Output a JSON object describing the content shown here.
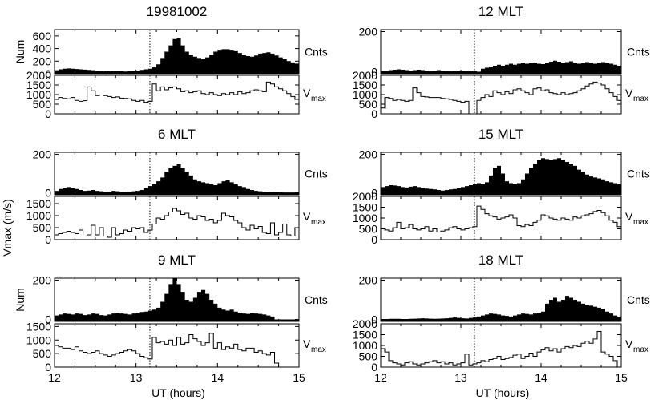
{
  "figure": {
    "x_ticks": [
      "12",
      "13",
      "14",
      "15"
    ],
    "x_label": "UT (hours)",
    "shared_y_label": "Vmax (m/s)",
    "right_label_counts": "Cnts",
    "right_label_v_base": "V",
    "right_label_v_sub": "max",
    "onset_ut": 13.17
  },
  "chart_data": [
    {
      "type": "area",
      "title": "19981002",
      "panels": [
        {
          "role": "counts",
          "ylabel": "Num",
          "yticks": [
            "0",
            "200",
            "400",
            "600"
          ],
          "ylim": [
            0,
            700
          ],
          "x_start": 12.0,
          "x_step": 0.05,
          "values": [
            55,
            70,
            80,
            85,
            80,
            75,
            70,
            65,
            60,
            55,
            50,
            45,
            40,
            45,
            50,
            45,
            40,
            35,
            40,
            45,
            50,
            60,
            70,
            80,
            100,
            150,
            250,
            350,
            450,
            550,
            570,
            450,
            350,
            300,
            270,
            250,
            230,
            260,
            300,
            350,
            380,
            390,
            390,
            380,
            370,
            330,
            300,
            280,
            270,
            290,
            320,
            330,
            340,
            320,
            290,
            260,
            230,
            200,
            180,
            160
          ]
        },
        {
          "role": "vmax",
          "ylabel": "",
          "yticks": [
            "0",
            "500",
            "1000",
            "1500",
            "2000"
          ],
          "ylim": [
            0,
            2000
          ],
          "x_start": 12.0,
          "x_step": 0.05,
          "values": [
            750,
            850,
            800,
            780,
            850,
            700,
            650,
            680,
            1400,
            1200,
            950,
            980,
            950,
            900,
            850,
            880,
            820,
            800,
            780,
            700,
            650,
            700,
            600,
            650,
            1550,
            1200,
            1400,
            1250,
            1350,
            1400,
            1300,
            1150,
            1200,
            1100,
            1150,
            1200,
            1050,
            1000,
            1100,
            1000,
            950,
            1050,
            1000,
            1100,
            1000,
            1150,
            1050,
            1100,
            1200,
            1250,
            1200,
            1150,
            1650,
            1550,
            1400,
            1300,
            1200,
            1050,
            900,
            750
          ]
        }
      ]
    },
    {
      "type": "area",
      "title": "12 MLT",
      "panels": [
        {
          "role": "counts",
          "ylabel": "",
          "yticks": [
            "0",
            "200"
          ],
          "ylim": [
            -10,
            210
          ],
          "x_start": 12.0,
          "x_step": 0.05,
          "values": [
            0,
            5,
            8,
            10,
            12,
            10,
            8,
            6,
            8,
            10,
            8,
            6,
            5,
            6,
            8,
            6,
            5,
            4,
            5,
            6,
            5,
            4,
            5,
            3,
            0,
            15,
            20,
            25,
            30,
            35,
            30,
            35,
            40,
            35,
            40,
            45,
            40,
            42,
            45,
            40,
            38,
            44,
            50,
            55,
            50,
            45,
            48,
            52,
            45,
            40,
            42,
            48,
            45,
            40,
            44,
            48,
            45,
            40,
            35,
            30
          ]
        },
        {
          "role": "vmax",
          "ylabel": "",
          "yticks": [
            "0",
            "500",
            "1000",
            "1500",
            "2000"
          ],
          "ylim": [
            0,
            2000
          ],
          "x_start": 12.0,
          "x_step": 0.05,
          "values": [
            300,
            850,
            800,
            700,
            750,
            700,
            650,
            700,
            1350,
            1100,
            900,
            880,
            850,
            850,
            850,
            800,
            780,
            750,
            700,
            650,
            600,
            650,
            -400,
            -400,
            700,
            850,
            1000,
            900,
            1200,
            1100,
            1000,
            1150,
            1050,
            1250,
            1300,
            1200,
            1100,
            1000,
            1300,
            1350,
            1200,
            1250,
            1100,
            1050,
            1000,
            1100,
            1000,
            1050,
            1100,
            1200,
            1300,
            1450,
            1550,
            1650,
            1600,
            1500,
            1300,
            1100,
            900,
            700
          ]
        }
      ]
    },
    {
      "type": "area",
      "title": "6 MLT",
      "panels": [
        {
          "role": "counts",
          "ylabel": "",
          "yticks": [
            "0",
            "200"
          ],
          "ylim": [
            -10,
            210
          ],
          "x_start": 12.0,
          "x_step": 0.05,
          "values": [
            10,
            20,
            25,
            30,
            25,
            20,
            15,
            10,
            12,
            15,
            10,
            8,
            5,
            6,
            10,
            8,
            5,
            3,
            5,
            8,
            10,
            15,
            25,
            35,
            45,
            60,
            80,
            110,
            130,
            140,
            150,
            130,
            110,
            90,
            70,
            60,
            55,
            50,
            45,
            40,
            50,
            60,
            65,
            55,
            45,
            35,
            30,
            20,
            15,
            10,
            8,
            6,
            5,
            4,
            3,
            3,
            2,
            2,
            2,
            2
          ]
        },
        {
          "role": "vmax",
          "ylabel": "",
          "yticks": [
            "0",
            "500",
            "1000",
            "1500"
          ],
          "ylim": [
            0,
            1800
          ],
          "x_start": 12.0,
          "x_step": 0.05,
          "values": [
            200,
            250,
            300,
            350,
            300,
            250,
            400,
            150,
            200,
            600,
            200,
            500,
            150,
            100,
            500,
            200,
            250,
            400,
            350,
            500,
            450,
            500,
            300,
            400,
            650,
            900,
            850,
            1000,
            1150,
            1300,
            1200,
            1050,
            1100,
            900,
            850,
            1000,
            950,
            800,
            850,
            700,
            800,
            1100,
            1000,
            950,
            800,
            700,
            500,
            400,
            600,
            450,
            550,
            300,
            250,
            700,
            200,
            300,
            650,
            200,
            150,
            500
          ]
        }
      ]
    },
    {
      "type": "area",
      "title": "15 MLT",
      "panels": [
        {
          "role": "counts",
          "ylabel": "",
          "yticks": [
            "0",
            "200"
          ],
          "ylim": [
            -10,
            210
          ],
          "x_start": 12.0,
          "x_step": 0.05,
          "values": [
            30,
            35,
            40,
            38,
            35,
            30,
            28,
            32,
            35,
            30,
            25,
            22,
            20,
            18,
            15,
            12,
            15,
            18,
            20,
            25,
            30,
            35,
            40,
            45,
            50,
            45,
            55,
            90,
            130,
            140,
            100,
            60,
            50,
            45,
            50,
            70,
            100,
            130,
            150,
            170,
            180,
            175,
            170,
            175,
            180,
            170,
            160,
            150,
            140,
            120,
            110,
            95,
            85,
            80,
            75,
            70,
            60,
            55,
            50,
            45
          ]
        },
        {
          "role": "vmax",
          "ylabel": "",
          "yticks": [
            "0",
            "500",
            "1000",
            "1500",
            "2000"
          ],
          "ylim": [
            0,
            2000
          ],
          "x_start": 12.0,
          "x_step": 0.05,
          "values": [
            500,
            450,
            400,
            550,
            800,
            500,
            550,
            700,
            500,
            450,
            500,
            600,
            400,
            500,
            350,
            400,
            450,
            550,
            600,
            500,
            450,
            500,
            550,
            600,
            1550,
            1400,
            1200,
            1100,
            1050,
            950,
            1000,
            1050,
            1150,
            1000,
            650,
            600,
            700,
            650,
            800,
            900,
            1150,
            1100,
            1000,
            950,
            900,
            1000,
            950,
            900,
            1050,
            1000,
            1100,
            1150,
            1200,
            1300,
            1350,
            1250,
            1100,
            900,
            800,
            600
          ]
        }
      ]
    },
    {
      "type": "area",
      "title": "9 MLT",
      "panels": [
        {
          "role": "counts",
          "ylabel": "Num",
          "yticks": [
            "0",
            "200"
          ],
          "ylim": [
            -10,
            210
          ],
          "x_start": 12.0,
          "x_step": 0.05,
          "values": [
            20,
            25,
            30,
            28,
            25,
            30,
            28,
            22,
            25,
            30,
            28,
            22,
            20,
            25,
            30,
            35,
            30,
            28,
            25,
            30,
            35,
            38,
            40,
            45,
            50,
            60,
            90,
            130,
            180,
            210,
            180,
            140,
            100,
            90,
            110,
            140,
            150,
            130,
            100,
            80,
            60,
            50,
            45,
            50,
            40,
            35,
            30,
            28,
            32,
            30,
            28,
            25,
            20,
            15,
            0,
            0,
            0,
            0,
            0,
            0
          ]
        },
        {
          "role": "vmax",
          "ylabel": "",
          "yticks": [
            "0",
            "500",
            "1000",
            "1500"
          ],
          "ylim": [
            0,
            1600
          ],
          "x_start": 12.0,
          "x_step": 0.05,
          "values": [
            800,
            750,
            700,
            700,
            650,
            750,
            600,
            550,
            500,
            550,
            600,
            500,
            450,
            400,
            450,
            500,
            550,
            600,
            650,
            600,
            500,
            400,
            350,
            300,
            1100,
            900,
            950,
            850,
            1000,
            800,
            1100,
            850,
            900,
            1200,
            1050,
            950,
            800,
            900,
            1250,
            700,
            900,
            650,
            750,
            700,
            850,
            650,
            600,
            700,
            700,
            550,
            600,
            500,
            450,
            550,
            150,
            0,
            0,
            0,
            0,
            0
          ]
        }
      ]
    },
    {
      "type": "area",
      "title": "18 MLT",
      "panels": [
        {
          "role": "counts",
          "ylabel": "",
          "yticks": [
            "0",
            "200"
          ],
          "ylim": [
            -10,
            210
          ],
          "x_start": 12.0,
          "x_step": 0.05,
          "values": [
            2,
            2,
            3,
            3,
            3,
            2,
            2,
            3,
            4,
            5,
            6,
            5,
            4,
            3,
            4,
            5,
            6,
            8,
            10,
            8,
            6,
            5,
            8,
            10,
            15,
            20,
            25,
            30,
            28,
            25,
            20,
            18,
            15,
            20,
            25,
            30,
            28,
            25,
            30,
            35,
            40,
            80,
            100,
            110,
            90,
            100,
            120,
            110,
            100,
            90,
            80,
            75,
            70,
            65,
            60,
            55,
            40,
            30,
            20,
            15
          ]
        },
        {
          "role": "vmax",
          "ylabel": "",
          "yticks": [
            "0",
            "500",
            "1000",
            "1500",
            "2000"
          ],
          "ylim": [
            0,
            2000
          ],
          "x_start": 12.0,
          "x_step": 0.05,
          "values": [
            850,
            700,
            300,
            200,
            150,
            100,
            200,
            250,
            150,
            100,
            150,
            200,
            250,
            300,
            200,
            250,
            150,
            200,
            100,
            150,
            200,
            600,
            100,
            150,
            200,
            300,
            250,
            350,
            400,
            500,
            350,
            400,
            450,
            550,
            600,
            400,
            500,
            650,
            500,
            700,
            800,
            900,
            750,
            850,
            700,
            850,
            950,
            900,
            1000,
            950,
            1100,
            1200,
            1100,
            1300,
            1650,
            700,
            600,
            500,
            300,
            0
          ]
        }
      ]
    }
  ]
}
